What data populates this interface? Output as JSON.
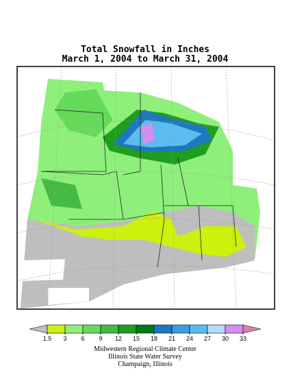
{
  "title": [
    "Total Snowfall in Inches",
    "March 1, 2004 to March 31, 2004"
  ],
  "legend": {
    "ticks": [
      1.5,
      3,
      6,
      9,
      12,
      15,
      18,
      21,
      24,
      27,
      30,
      33
    ],
    "colors": [
      "#bebebe",
      "#cdf00f",
      "#8ef07a",
      "#66da5a",
      "#45bb45",
      "#1e9e1e",
      "#007a14",
      "#1e78c0",
      "#3c9ce0",
      "#5cbcf0",
      "#b4dcf8",
      "#d28ef0",
      "#e47ab4"
    ]
  },
  "credits": [
    "Midwestern Regional Climate Center",
    "Illinois State Water Survey",
    "Champaign, Illinois"
  ]
}
